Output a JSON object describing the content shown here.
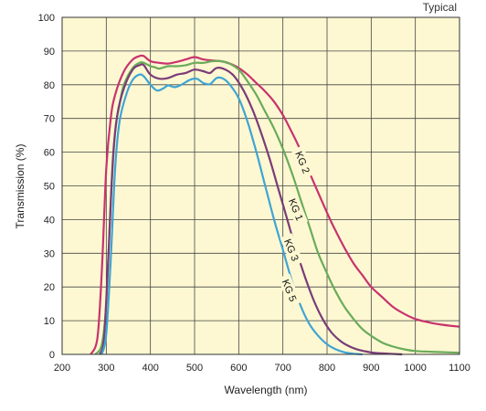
{
  "corner_label": "Typical",
  "chart_data": {
    "type": "line",
    "title": "",
    "xlabel": "Wavelength (nm)",
    "ylabel": "Transmission (%)",
    "xlim": [
      200,
      1100
    ],
    "ylim": [
      0,
      100
    ],
    "xticks": [
      200,
      300,
      400,
      500,
      600,
      700,
      800,
      900,
      1000,
      1100
    ],
    "yticks": [
      0,
      10,
      20,
      30,
      40,
      50,
      60,
      70,
      80,
      90,
      100
    ],
    "grid": true,
    "background_color": "#fdf8d2",
    "series": [
      {
        "name": "KG 2",
        "color": "#c8336e",
        "points": [
          [
            265,
            0
          ],
          [
            280,
            5
          ],
          [
            290,
            25
          ],
          [
            300,
            55
          ],
          [
            310,
            70
          ],
          [
            320,
            77
          ],
          [
            340,
            84
          ],
          [
            360,
            87.5
          ],
          [
            375,
            88.5
          ],
          [
            385,
            88.5
          ],
          [
            400,
            87
          ],
          [
            420,
            86.5
          ],
          [
            440,
            86.3
          ],
          [
            460,
            86.8
          ],
          [
            480,
            87.5
          ],
          [
            500,
            88.2
          ],
          [
            520,
            87.5
          ],
          [
            540,
            87.2
          ],
          [
            560,
            87
          ],
          [
            580,
            86.3
          ],
          [
            600,
            85
          ],
          [
            620,
            83
          ],
          [
            640,
            80.5
          ],
          [
            660,
            78
          ],
          [
            680,
            75
          ],
          [
            700,
            71
          ],
          [
            720,
            66
          ],
          [
            740,
            60.5
          ],
          [
            760,
            54
          ],
          [
            780,
            48
          ],
          [
            800,
            42
          ],
          [
            820,
            36.5
          ],
          [
            840,
            31.5
          ],
          [
            860,
            27
          ],
          [
            880,
            23.5
          ],
          [
            900,
            20
          ],
          [
            925,
            17
          ],
          [
            950,
            14
          ],
          [
            975,
            12
          ],
          [
            1000,
            10.5
          ],
          [
            1030,
            9.5
          ],
          [
            1060,
            8.8
          ],
          [
            1100,
            8.2
          ]
        ]
      },
      {
        "name": "KG 1",
        "color": "#6aab5a",
        "points": [
          [
            275,
            0
          ],
          [
            290,
            3
          ],
          [
            300,
            15
          ],
          [
            310,
            45
          ],
          [
            320,
            66
          ],
          [
            330,
            74
          ],
          [
            340,
            80
          ],
          [
            360,
            85
          ],
          [
            375,
            86.5
          ],
          [
            385,
            86.5
          ],
          [
            400,
            85.5
          ],
          [
            410,
            85.2
          ],
          [
            420,
            84.8
          ],
          [
            440,
            85.5
          ],
          [
            460,
            85.5
          ],
          [
            480,
            85.8
          ],
          [
            500,
            86.5
          ],
          [
            520,
            86.5
          ],
          [
            540,
            87
          ],
          [
            560,
            87
          ],
          [
            580,
            86.2
          ],
          [
            600,
            84.5
          ],
          [
            620,
            81
          ],
          [
            640,
            77
          ],
          [
            660,
            72
          ],
          [
            680,
            67
          ],
          [
            700,
            61
          ],
          [
            720,
            54
          ],
          [
            740,
            46
          ],
          [
            760,
            38
          ],
          [
            780,
            30
          ],
          [
            800,
            24
          ],
          [
            820,
            18.5
          ],
          [
            840,
            14
          ],
          [
            860,
            10.5
          ],
          [
            880,
            7.5
          ],
          [
            900,
            5.5
          ],
          [
            925,
            3.5
          ],
          [
            950,
            2.3
          ],
          [
            975,
            1.5
          ],
          [
            1000,
            1
          ],
          [
            1050,
            0.7
          ],
          [
            1100,
            0.5
          ]
        ]
      },
      {
        "name": "KG 3",
        "color": "#7a3c78",
        "points": [
          [
            285,
            0
          ],
          [
            295,
            5
          ],
          [
            305,
            30
          ],
          [
            315,
            58
          ],
          [
            325,
            71
          ],
          [
            340,
            79
          ],
          [
            360,
            84.5
          ],
          [
            375,
            85.8
          ],
          [
            385,
            85.8
          ],
          [
            400,
            83
          ],
          [
            420,
            81.8
          ],
          [
            440,
            82
          ],
          [
            460,
            83
          ],
          [
            480,
            83.5
          ],
          [
            500,
            84.5
          ],
          [
            520,
            84
          ],
          [
            535,
            83.5
          ],
          [
            550,
            85
          ],
          [
            570,
            84.5
          ],
          [
            590,
            82.5
          ],
          [
            610,
            78.5
          ],
          [
            630,
            73
          ],
          [
            650,
            66
          ],
          [
            670,
            58
          ],
          [
            690,
            49
          ],
          [
            710,
            40
          ],
          [
            730,
            31
          ],
          [
            750,
            23
          ],
          [
            770,
            16
          ],
          [
            790,
            10.5
          ],
          [
            810,
            6.5
          ],
          [
            830,
            4
          ],
          [
            850,
            2.4
          ],
          [
            870,
            1.4
          ],
          [
            890,
            0.8
          ],
          [
            910,
            0.4
          ],
          [
            940,
            0.2
          ],
          [
            970,
            0
          ]
        ]
      },
      {
        "name": "KG 5",
        "color": "#3fa4d4",
        "points": [
          [
            290,
            0
          ],
          [
            300,
            6
          ],
          [
            310,
            28
          ],
          [
            320,
            55
          ],
          [
            330,
            69
          ],
          [
            345,
            77
          ],
          [
            360,
            81.5
          ],
          [
            375,
            83
          ],
          [
            385,
            82.5
          ],
          [
            400,
            80
          ],
          [
            415,
            78.3
          ],
          [
            430,
            79
          ],
          [
            440,
            79.8
          ],
          [
            455,
            79.3
          ],
          [
            470,
            80
          ],
          [
            490,
            81.5
          ],
          [
            505,
            81.8
          ],
          [
            520,
            80.5
          ],
          [
            535,
            80.2
          ],
          [
            550,
            82
          ],
          [
            565,
            81.8
          ],
          [
            580,
            80
          ],
          [
            600,
            76
          ],
          [
            620,
            69
          ],
          [
            640,
            60
          ],
          [
            660,
            50
          ],
          [
            680,
            40
          ],
          [
            700,
            31
          ],
          [
            720,
            22
          ],
          [
            740,
            14.5
          ],
          [
            760,
            9
          ],
          [
            780,
            5.5
          ],
          [
            800,
            3
          ],
          [
            820,
            1.5
          ],
          [
            840,
            0.6
          ],
          [
            860,
            0.2
          ],
          [
            880,
            0
          ]
        ]
      }
    ],
    "series_labels": [
      {
        "series": "KG 2",
        "text": "KG 2",
        "x": 745,
        "y": 57,
        "angle": 68
      },
      {
        "series": "KG 1",
        "text": "KG 1",
        "x": 730,
        "y": 43,
        "angle": 68
      },
      {
        "series": "KG 3",
        "text": "KG 3",
        "x": 720,
        "y": 31,
        "angle": 68
      },
      {
        "series": "KG 5",
        "text": "KG 5",
        "x": 715,
        "y": 19,
        "angle": 68
      }
    ]
  }
}
